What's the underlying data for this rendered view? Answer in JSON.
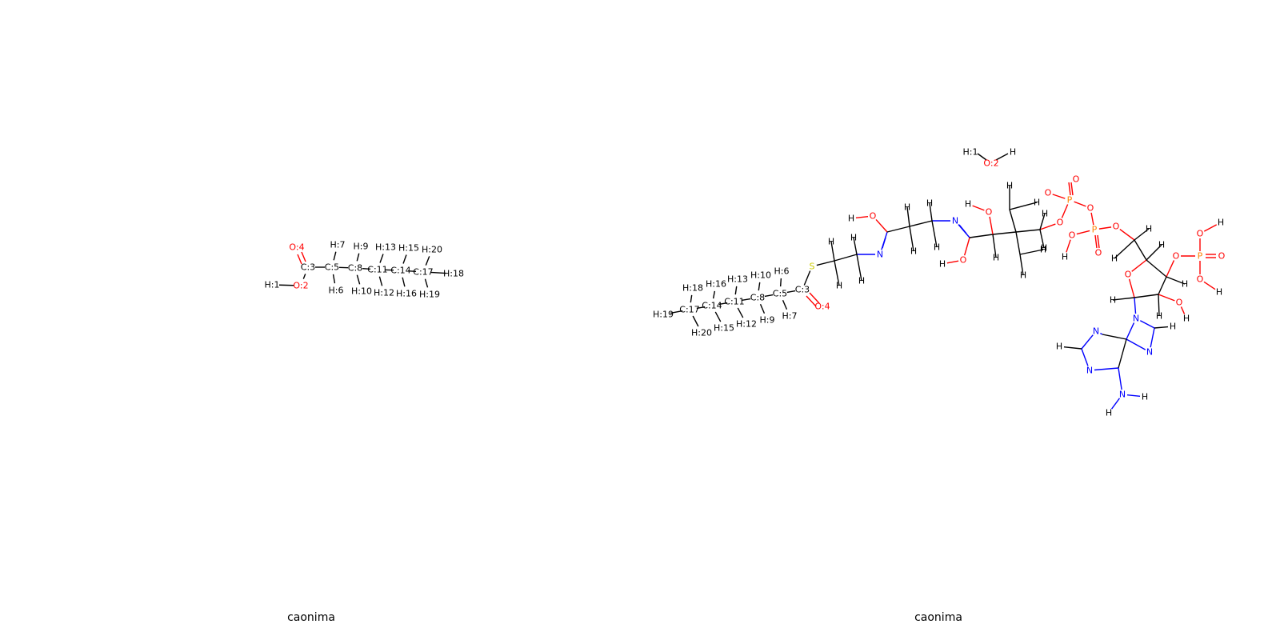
{
  "panels": [
    {
      "caption": "caonima",
      "molecule": {
        "atoms": [
          {
            "label": "H:1",
            "el": "H"
          },
          {
            "label": "O:2",
            "el": "O"
          },
          {
            "label": "C:3",
            "el": "C"
          },
          {
            "label": "O:4",
            "el": "O"
          },
          {
            "label": "C:5",
            "el": "C"
          },
          {
            "label": "H:6",
            "el": "H"
          },
          {
            "label": "H:7",
            "el": "H"
          },
          {
            "label": "C:8",
            "el": "C"
          },
          {
            "label": "H:9",
            "el": "H"
          },
          {
            "label": "H:10",
            "el": "H"
          },
          {
            "label": "C:11",
            "el": "C"
          },
          {
            "label": "H:12",
            "el": "H"
          },
          {
            "label": "H:13",
            "el": "H"
          },
          {
            "label": "C:14",
            "el": "C"
          },
          {
            "label": "H:15",
            "el": "H"
          },
          {
            "label": "H:16",
            "el": "H"
          },
          {
            "label": "C:17",
            "el": "C"
          },
          {
            "label": "H:18",
            "el": "H"
          },
          {
            "label": "H:19",
            "el": "H"
          },
          {
            "label": "H:20",
            "el": "H"
          }
        ]
      }
    },
    {
      "caption": "caonima",
      "molecule": {
        "atoms": [
          {
            "label": "H:1",
            "el": "H"
          },
          {
            "label": "O:2",
            "el": "O"
          },
          {
            "label": "H",
            "el": "H"
          },
          {
            "label": "H:19",
            "el": "H"
          },
          {
            "label": "C:17",
            "el": "C"
          },
          {
            "label": "H:18",
            "el": "H"
          },
          {
            "label": "H:20",
            "el": "H"
          },
          {
            "label": "C:14",
            "el": "C"
          },
          {
            "label": "H:16",
            "el": "H"
          },
          {
            "label": "H:15",
            "el": "H"
          },
          {
            "label": "C:11",
            "el": "C"
          },
          {
            "label": "H:13",
            "el": "H"
          },
          {
            "label": "H:12",
            "el": "H"
          },
          {
            "label": "C:8",
            "el": "C"
          },
          {
            "label": "H:10",
            "el": "H"
          },
          {
            "label": "H:9",
            "el": "H"
          },
          {
            "label": "C:5",
            "el": "C"
          },
          {
            "label": "H:6",
            "el": "H"
          },
          {
            "label": "H:7",
            "el": "H"
          },
          {
            "label": "C:3",
            "el": "C"
          },
          {
            "label": "O:4",
            "el": "O"
          },
          {
            "label": "S",
            "el": "S"
          },
          {
            "label": "N",
            "el": "N"
          },
          {
            "label": "O",
            "el": "O"
          },
          {
            "label": "P",
            "el": "P"
          }
        ]
      }
    }
  ],
  "colors": {
    "C": "#000000",
    "H": "#000000",
    "O": "#ff0000",
    "N": "#0000ff",
    "S": "#cccc00",
    "P": "#ff8000"
  }
}
